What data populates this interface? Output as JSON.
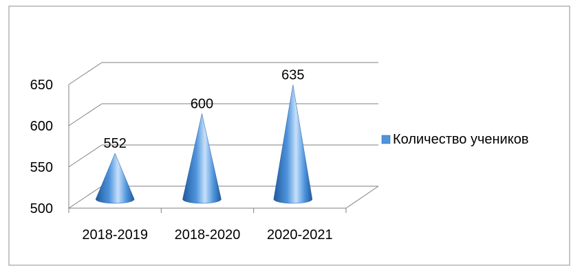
{
  "chart_data": {
    "type": "bar",
    "subtype": "3d-cone",
    "categories": [
      "2018-2019",
      "2018-2020",
      "2020-2021"
    ],
    "series": [
      {
        "name": "Количество учеников",
        "values": [
          552,
          600,
          635
        ]
      }
    ],
    "data_labels": [
      "552",
      "600",
      "635"
    ],
    "y_ticks": [
      "500",
      "550",
      "600",
      "650"
    ],
    "ylim": [
      500,
      650
    ],
    "y_tick_values": [
      500,
      550,
      600,
      650
    ],
    "title": "",
    "xlabel": "",
    "ylabel": "",
    "grid": true,
    "legend_position": "right",
    "colors": {
      "cone": "#4f94dc",
      "cone_light": "#c6e0fb",
      "cone_dark": "#1f5a9e",
      "axis": "#7f7f7f",
      "border": "#8c8c8c",
      "text": "#000000"
    }
  }
}
